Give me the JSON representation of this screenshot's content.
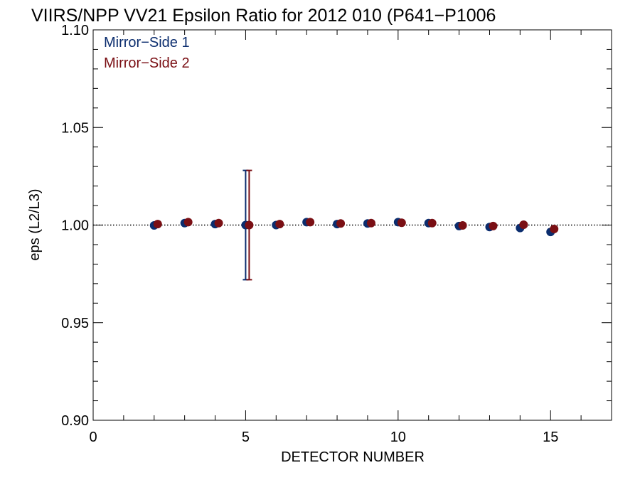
{
  "chart_data": {
    "type": "scatter",
    "title": "VIIRS/NPP VV21 Epsilon Ratio for 2012 010 (P641−P1006",
    "xlabel": "DETECTOR NUMBER",
    "ylabel": "eps (L2/L3)",
    "xlim": [
      0,
      17
    ],
    "ylim": [
      0.9,
      1.1
    ],
    "x_ticks": [
      0,
      5,
      10,
      15
    ],
    "x_tick_labels": [
      "0",
      "5",
      "10",
      "15"
    ],
    "y_ticks": [
      0.9,
      0.95,
      1.0,
      1.05,
      1.1
    ],
    "y_tick_labels": [
      "0.90",
      "0.95",
      "1.00",
      "1.05",
      "1.10"
    ],
    "reference_line": {
      "y": 1.0,
      "style": "dotted"
    },
    "legend_position": "top-left",
    "grid": false,
    "series": [
      {
        "name": "Mirror−Side 1",
        "color": "#0b2d6e",
        "x": [
          2,
          3,
          4,
          5,
          6,
          7,
          8,
          9,
          10,
          11,
          12,
          13,
          14,
          15
        ],
        "y": [
          0.9998,
          1.001,
          1.0005,
          1.0,
          1.0,
          1.0015,
          1.0005,
          1.0008,
          1.0015,
          1.001,
          0.9995,
          0.999,
          0.9985,
          0.9965
        ],
        "error": [
          null,
          null,
          null,
          0.028,
          null,
          null,
          null,
          null,
          null,
          null,
          null,
          null,
          null,
          null
        ]
      },
      {
        "name": "Mirror−Side 2",
        "color": "#7a0f14",
        "x": [
          2,
          3,
          4,
          5,
          6,
          7,
          8,
          9,
          10,
          11,
          12,
          13,
          14,
          15
        ],
        "y": [
          1.0005,
          1.0015,
          1.001,
          1.0,
          1.0005,
          1.0015,
          1.0008,
          1.001,
          1.0012,
          1.001,
          0.9998,
          0.9995,
          1.0002,
          0.998
        ],
        "error": [
          null,
          null,
          null,
          0.028,
          null,
          null,
          null,
          null,
          null,
          null,
          null,
          null,
          null,
          null
        ]
      }
    ]
  }
}
